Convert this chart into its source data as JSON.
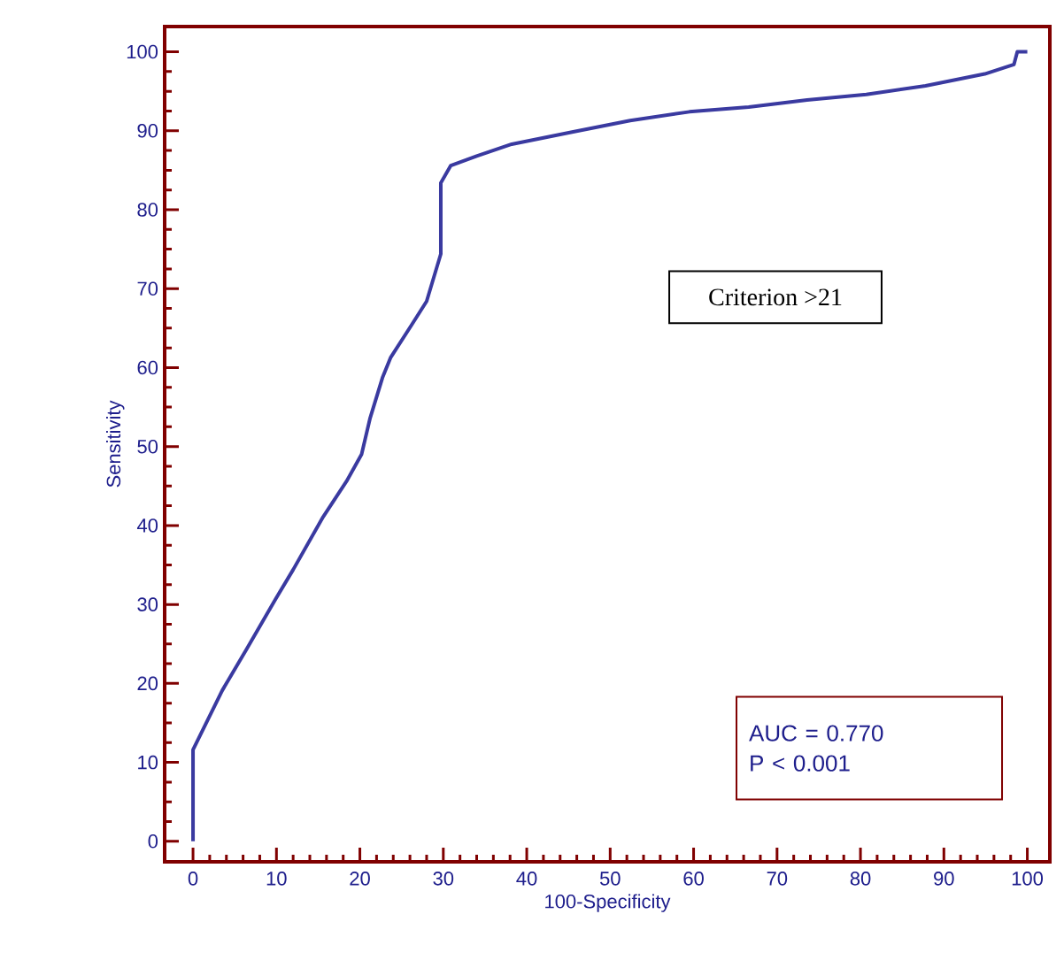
{
  "chart_data": {
    "type": "line",
    "xlabel": "100-Specificity",
    "ylabel": "Sensitivity",
    "x": [
      0,
      0,
      3.5,
      6.4,
      9.9,
      12.0,
      15.6,
      18.4,
      20.2,
      21.2,
      22.7,
      23.7,
      26.2,
      28.0,
      29.7,
      29.7,
      30.9,
      34,
      38.2,
      45.3,
      52.4,
      59.5,
      66.6,
      73.6,
      80.7,
      87.8,
      94.9,
      98.4,
      98.8,
      100
    ],
    "series": [
      {
        "color": "#3a3aa0",
        "values": [
          0,
          11.6,
          19.1,
          24.3,
          30.7,
          34.4,
          41.1,
          45.6,
          49.0,
          53.5,
          58.7,
          61.3,
          65.4,
          68.4,
          74.4,
          83.4,
          85.6,
          86.8,
          88.3,
          89.8,
          91.3,
          92.4,
          93.0,
          93.9,
          94.6,
          95.7,
          97.2,
          98.4,
          100,
          100
        ]
      }
    ],
    "xlim": [
      -3.4,
      102.7
    ],
    "ylim": [
      -2.6,
      103.2
    ],
    "xticks": [
      0,
      10,
      20,
      30,
      40,
      50,
      60,
      70,
      80,
      90,
      100
    ],
    "yticks": [
      0,
      10,
      20,
      30,
      40,
      50,
      60,
      70,
      80,
      90,
      100
    ],
    "annotations": [
      "Criterion >21",
      "AUC = 0.770",
      "P < 0.001"
    ],
    "grid": false,
    "marker": "none",
    "line_style": "solid"
  }
}
